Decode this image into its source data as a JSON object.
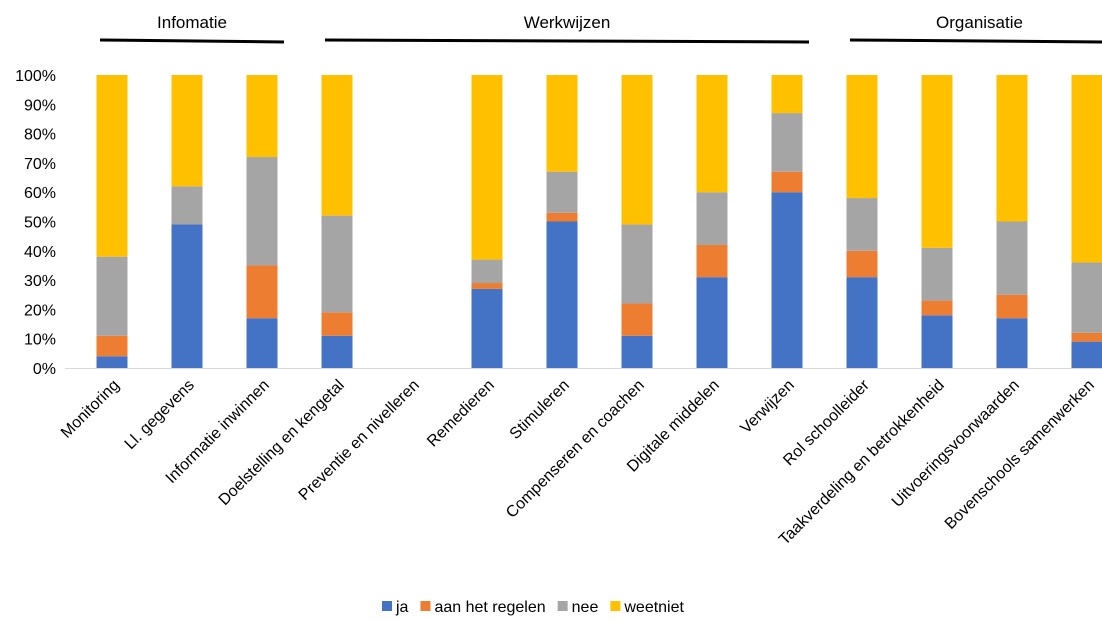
{
  "chart_data": {
    "type": "bar",
    "stacked": true,
    "percent": true,
    "categories": [
      "Monitoring",
      "Ll. gegevens",
      "Informatie inwinnen",
      "Doelstelling en kengetal",
      "Preventie en nivelleren",
      "Remedieren",
      "Stimuleren",
      "Compenseren en coachen",
      "Digitale middelen",
      "Verwijzen",
      "Rol schoolleider",
      "Taakverdeling en betrokkenheid",
      "Uitvoeringsvoorwaarden",
      "Bovenschools samenwerken"
    ],
    "series": [
      {
        "name": "ja",
        "color": "#4472C4",
        "values": [
          4,
          49,
          17,
          11,
          0,
          27,
          50,
          11,
          31,
          60,
          31,
          18,
          17,
          9
        ]
      },
      {
        "name": "aan het regelen",
        "color": "#ED7D31",
        "values": [
          7,
          0,
          18,
          8,
          0,
          2,
          3,
          11,
          11,
          7,
          9,
          5,
          8,
          3
        ]
      },
      {
        "name": "nee",
        "color": "#A5A5A5",
        "values": [
          27,
          13,
          37,
          33,
          0,
          8,
          14,
          27,
          18,
          20,
          18,
          18,
          25,
          24
        ]
      },
      {
        "name": "weetniet",
        "color": "#FFC000",
        "values": [
          62,
          38,
          28,
          48,
          0,
          63,
          33,
          51,
          40,
          13,
          42,
          59,
          50,
          64
        ]
      }
    ],
    "ylim": [
      0,
      100
    ],
    "yticks": [
      "0%",
      "10%",
      "20%",
      "30%",
      "40%",
      "50%",
      "60%",
      "70%",
      "80%",
      "90%",
      "100%"
    ],
    "groups": [
      {
        "label": "Infomatie",
        "from": 0,
        "to": 2
      },
      {
        "label": "Werkwijzen",
        "from": 3,
        "to": 9
      },
      {
        "label": "Organisatie",
        "from": 10,
        "to": 13
      }
    ],
    "legend": "bottom",
    "grid": false
  }
}
